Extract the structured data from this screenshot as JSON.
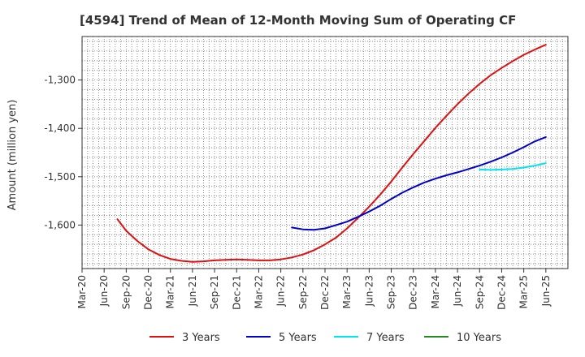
{
  "chart_data": {
    "type": "line",
    "title": "[4594]  Trend of Mean of 12-Month Moving Sum of Operating CF",
    "ylabel": "Amount (million yen)",
    "xlabel": "",
    "ylim": [
      -1690,
      -1210
    ],
    "yticks": [
      -1300,
      -1400,
      -1500,
      -1600
    ],
    "ytick_labels": [
      "-1,300",
      "-1,400",
      "-1,500",
      "-1,600"
    ],
    "x_categories": [
      "Mar-20",
      "Jun-20",
      "Sep-20",
      "Dec-20",
      "Mar-21",
      "Jun-21",
      "Sep-21",
      "Dec-21",
      "Mar-22",
      "Jun-22",
      "Sep-22",
      "Dec-22",
      "Mar-23",
      "Jun-23",
      "Sep-23",
      "Dec-23",
      "Mar-24",
      "Jun-24",
      "Sep-24",
      "Dec-24",
      "Mar-25",
      "Jun-25"
    ],
    "grid": true,
    "series": [
      {
        "name": "3 Years",
        "color": "#dd1111",
        "points": [
          [
            1.6,
            -1588
          ],
          [
            2.0,
            -1612
          ],
          [
            2.5,
            -1633
          ],
          [
            3.0,
            -1650
          ],
          [
            3.5,
            -1662
          ],
          [
            4.0,
            -1670
          ],
          [
            4.5,
            -1674
          ],
          [
            5.0,
            -1676
          ],
          [
            5.5,
            -1675
          ],
          [
            6.0,
            -1673
          ],
          [
            6.5,
            -1672
          ],
          [
            7.0,
            -1671
          ],
          [
            7.5,
            -1672
          ],
          [
            8.0,
            -1673
          ],
          [
            8.5,
            -1673
          ],
          [
            9.0,
            -1671
          ],
          [
            9.5,
            -1667
          ],
          [
            10.0,
            -1661
          ],
          [
            10.5,
            -1652
          ],
          [
            11.0,
            -1640
          ],
          [
            11.5,
            -1626
          ],
          [
            12.0,
            -1607
          ],
          [
            12.5,
            -1585
          ],
          [
            13.0,
            -1562
          ],
          [
            13.5,
            -1537
          ],
          [
            14.0,
            -1510
          ],
          [
            14.5,
            -1481
          ],
          [
            15.0,
            -1453
          ],
          [
            15.5,
            -1426
          ],
          [
            16.0,
            -1399
          ],
          [
            16.5,
            -1374
          ],
          [
            17.0,
            -1350
          ],
          [
            17.5,
            -1328
          ],
          [
            18.0,
            -1308
          ],
          [
            18.5,
            -1290
          ],
          [
            19.0,
            -1275
          ],
          [
            19.5,
            -1261
          ],
          [
            20.0,
            -1248
          ],
          [
            20.5,
            -1237
          ],
          [
            21.0,
            -1227
          ]
        ]
      },
      {
        "name": "5 Years",
        "color": "#0000cc",
        "points": [
          [
            9.5,
            -1605
          ],
          [
            10.0,
            -1609
          ],
          [
            10.5,
            -1610
          ],
          [
            11.0,
            -1607
          ],
          [
            11.5,
            -1600
          ],
          [
            12.0,
            -1593
          ],
          [
            12.5,
            -1583
          ],
          [
            13.0,
            -1572
          ],
          [
            13.5,
            -1560
          ],
          [
            14.0,
            -1546
          ],
          [
            14.5,
            -1533
          ],
          [
            15.0,
            -1522
          ],
          [
            15.5,
            -1512
          ],
          [
            16.0,
            -1504
          ],
          [
            16.5,
            -1497
          ],
          [
            17.0,
            -1491
          ],
          [
            17.5,
            -1484
          ],
          [
            18.0,
            -1477
          ],
          [
            18.5,
            -1469
          ],
          [
            19.0,
            -1460
          ],
          [
            19.5,
            -1450
          ],
          [
            20.0,
            -1439
          ],
          [
            20.5,
            -1427
          ],
          [
            21.0,
            -1418
          ]
        ]
      },
      {
        "name": "7 Years",
        "color": "#00e5ee",
        "points": [
          [
            18.0,
            -1485
          ],
          [
            18.5,
            -1486
          ],
          [
            19.0,
            -1485
          ],
          [
            19.5,
            -1484
          ],
          [
            20.0,
            -1481
          ],
          [
            20.5,
            -1477
          ],
          [
            21.0,
            -1472
          ]
        ]
      },
      {
        "name": "10 Years",
        "color": "#228b22",
        "points": []
      }
    ]
  }
}
